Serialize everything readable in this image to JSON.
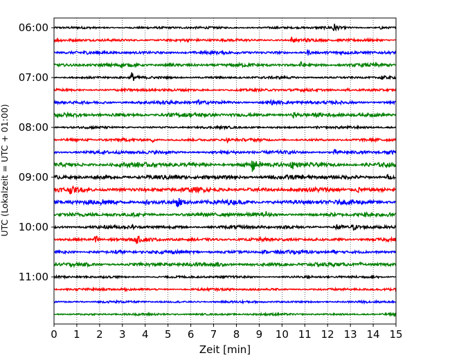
{
  "chart_data": {
    "type": "line",
    "subtype": "helicorder-seismogram",
    "title": "",
    "xlabel": "Zeit  [min]",
    "ylabel": "UTC (Lokalzeit = UTC + 01:00)",
    "xlim": [
      0,
      15
    ],
    "xticks": [
      0,
      1,
      2,
      3,
      4,
      5,
      6,
      7,
      8,
      9,
      10,
      11,
      12,
      13,
      14,
      15
    ],
    "x_grid": true,
    "x_grid_style": "dotted",
    "y_ticks": [
      {
        "label": "06:00",
        "trace": 0
      },
      {
        "label": "07:00",
        "trace": 4
      },
      {
        "label": "08:00",
        "trace": 8
      },
      {
        "label": "09:00",
        "trace": 12
      },
      {
        "label": "10:00",
        "trace": 16
      },
      {
        "label": "11:00",
        "trace": 20
      }
    ],
    "minutes_per_trace": 15,
    "colors": [
      "#000000",
      "#ff0000",
      "#0000ff",
      "#008000"
    ],
    "traces": [
      {
        "start": "06:00",
        "noise": 0.15,
        "events": [
          {
            "t": 12.2,
            "amp": 1.3
          },
          {
            "t": 14.3,
            "amp": 0.25
          }
        ]
      },
      {
        "start": "06:15",
        "noise": 0.18,
        "events": [
          {
            "t": 10.4,
            "amp": 0.55
          },
          {
            "t": 11.0,
            "amp": 0.3
          }
        ]
      },
      {
        "start": "06:30",
        "noise": 0.2,
        "events": [
          {
            "t": 11.1,
            "amp": 0.55
          }
        ]
      },
      {
        "start": "06:45",
        "noise": 0.22,
        "events": [
          {
            "t": 10.8,
            "amp": 0.55
          },
          {
            "t": 5.1,
            "amp": 0.3
          }
        ]
      },
      {
        "start": "07:00",
        "noise": 0.16,
        "events": [
          {
            "t": 3.4,
            "amp": 0.9
          },
          {
            "t": 14.3,
            "amp": 0.55
          }
        ]
      },
      {
        "start": "07:15",
        "noise": 0.18,
        "events": [
          {
            "t": 12.8,
            "amp": 0.3
          }
        ]
      },
      {
        "start": "07:30",
        "noise": 0.22,
        "events": [
          {
            "t": 6.3,
            "amp": 0.45
          },
          {
            "t": 9.5,
            "amp": 0.3
          }
        ]
      },
      {
        "start": "07:45",
        "noise": 0.25,
        "events": [
          {
            "t": 10.5,
            "amp": 0.35
          },
          {
            "t": 5.0,
            "amp": 0.35
          }
        ]
      },
      {
        "start": "08:00",
        "noise": 0.15,
        "events": [
          {
            "t": 11.5,
            "amp": 0.2
          }
        ]
      },
      {
        "start": "08:15",
        "noise": 0.18,
        "events": [
          {
            "t": 4.3,
            "amp": 0.4
          },
          {
            "t": 7.6,
            "amp": 0.3
          }
        ]
      },
      {
        "start": "08:30",
        "noise": 0.22,
        "events": [
          {
            "t": 12.3,
            "amp": 0.45
          },
          {
            "t": 14.6,
            "amp": 0.45
          }
        ]
      },
      {
        "start": "08:45",
        "noise": 0.3,
        "events": [
          {
            "t": 8.7,
            "amp": 1.1
          },
          {
            "t": 10.4,
            "amp": 0.95
          }
        ]
      },
      {
        "start": "09:00",
        "noise": 0.28,
        "events": [
          {
            "t": 6.5,
            "amp": 0.45
          },
          {
            "t": 14.6,
            "amp": 0.4
          }
        ]
      },
      {
        "start": "09:15",
        "noise": 0.3,
        "events": [
          {
            "t": 0.7,
            "amp": 0.45
          },
          {
            "t": 13.3,
            "amp": 0.45
          }
        ]
      },
      {
        "start": "09:30",
        "noise": 0.3,
        "events": [
          {
            "t": 5.4,
            "amp": 1.2
          },
          {
            "t": 4.0,
            "amp": 0.6
          },
          {
            "t": 2.1,
            "amp": 0.4
          }
        ]
      },
      {
        "start": "09:45",
        "noise": 0.25,
        "events": [
          {
            "t": 9.3,
            "amp": 0.35
          },
          {
            "t": 13.6,
            "amp": 0.35
          }
        ]
      },
      {
        "start": "10:00",
        "noise": 0.22,
        "events": [
          {
            "t": 12.4,
            "amp": 1.1
          },
          {
            "t": 13.1,
            "amp": 0.5
          },
          {
            "t": 3.4,
            "amp": 0.3
          }
        ]
      },
      {
        "start": "10:15",
        "noise": 0.22,
        "events": [
          {
            "t": 1.8,
            "amp": 1.0
          },
          {
            "t": 3.6,
            "amp": 0.6
          },
          {
            "t": 2.4,
            "amp": 0.4
          }
        ]
      },
      {
        "start": "10:30",
        "noise": 0.22,
        "events": [
          {
            "t": 2.7,
            "amp": 0.55
          },
          {
            "t": 12.2,
            "amp": 0.45
          },
          {
            "t": 9.2,
            "amp": 0.3
          }
        ]
      },
      {
        "start": "10:45",
        "noise": 0.25,
        "events": [
          {
            "t": 7.2,
            "amp": 0.35
          },
          {
            "t": 13.4,
            "amp": 0.3
          }
        ]
      },
      {
        "start": "11:00",
        "noise": 0.15,
        "events": [
          {
            "t": 14.0,
            "amp": 0.45
          },
          {
            "t": 11.1,
            "amp": 0.2
          }
        ]
      },
      {
        "start": "11:15",
        "noise": 0.16,
        "events": [
          {
            "t": 3.0,
            "amp": 0.5
          }
        ]
      },
      {
        "start": "11:30",
        "noise": 0.14,
        "events": []
      },
      {
        "start": "11:45",
        "noise": 0.14,
        "events": []
      }
    ]
  }
}
